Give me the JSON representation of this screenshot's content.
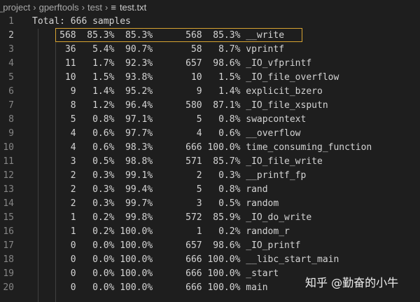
{
  "breadcrumb": {
    "items": [
      "_project",
      "gperftools",
      "test"
    ],
    "file": "test.txt",
    "file_icon": "text-file-icon"
  },
  "editor": {
    "line_numbers": [
      "1",
      "2",
      "3",
      "4",
      "5",
      "6",
      "7",
      "8",
      "9",
      "10",
      "11",
      "12",
      "13",
      "14",
      "15",
      "16",
      "17",
      "18",
      "19",
      "20"
    ],
    "lines": [
      "Total: 666 samples",
      "     568  85.3%  85.3%      568  85.3% __write",
      "      36   5.4%  90.7%       58   8.7% vprintf",
      "      11   1.7%  92.3%      657  98.6% _IO_vfprintf",
      "      10   1.5%  93.8%       10   1.5% _IO_file_overflow",
      "       9   1.4%  95.2%        9   1.4% explicit_bzero",
      "       8   1.2%  96.4%      580  87.1% _IO_file_xsputn",
      "       5   0.8%  97.1%        5   0.8% swapcontext",
      "       4   0.6%  97.7%        4   0.6% __overflow",
      "       4   0.6%  98.3%      666 100.0% time_consuming_function",
      "       3   0.5%  98.8%      571  85.7% _IO_file_write",
      "       2   0.3%  99.1%        2   0.3% __printf_fp",
      "       2   0.3%  99.4%        5   0.8% rand",
      "       2   0.3%  99.7%        3   0.5% random",
      "       1   0.2%  99.8%      572  85.9% _IO_do_write",
      "       1   0.2% 100.0%        1   0.2% random_r",
      "       0   0.0% 100.0%      657  98.6% _IO_printf",
      "       0   0.0% 100.0%      666 100.0% __libc_start_main",
      "       0   0.0% 100.0%      666 100.0% _start",
      "       0   0.0% 100.0%      666 100.0% main"
    ],
    "highlight_color": "#d7a332"
  },
  "watermark": "知乎 @勤奋的小牛"
}
